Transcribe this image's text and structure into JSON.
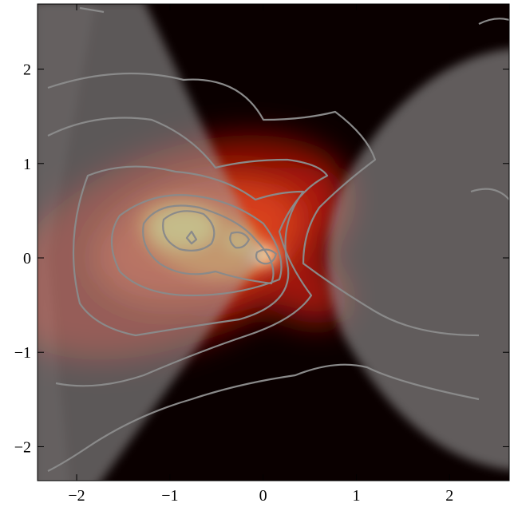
{
  "chart_data": {
    "type": "image",
    "xlim": [
      -2.42,
      2.64
    ],
    "ylim": [
      -2.36,
      2.69
    ],
    "xticks": [
      {
        "value": -2,
        "label": "−2"
      },
      {
        "value": -1,
        "label": "−1"
      },
      0,
      1,
      2
    ],
    "yticks": [
      {
        "value": -2,
        "label": "−2"
      },
      {
        "value": -1,
        "label": "−1"
      },
      0,
      1,
      2
    ]
  }
}
